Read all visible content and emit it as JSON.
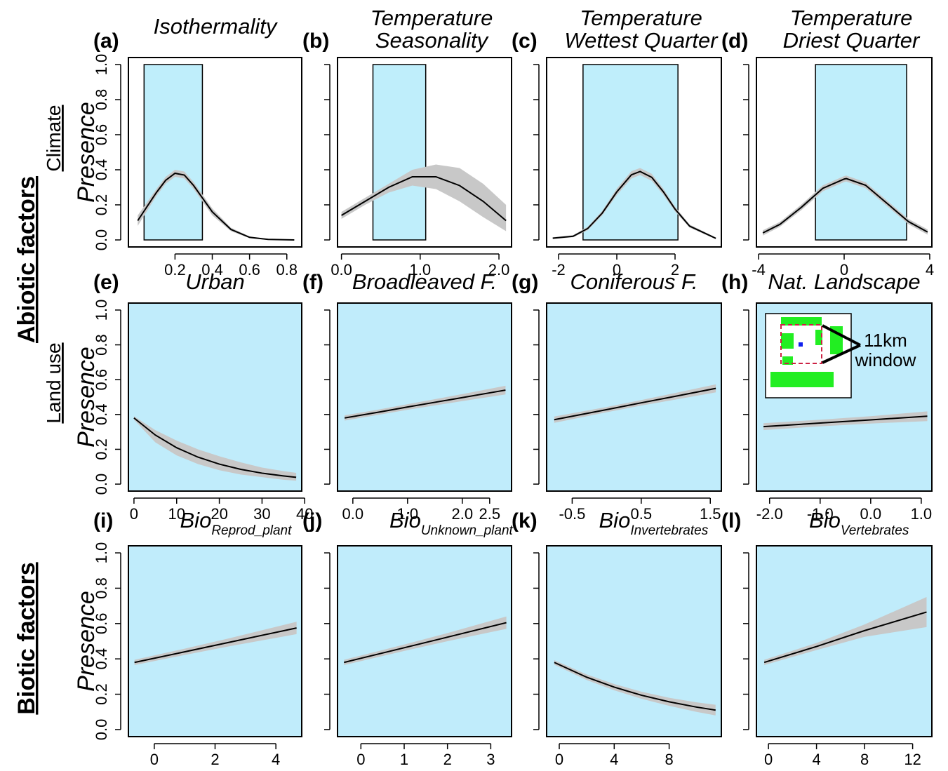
{
  "factor_labels": [
    "Abiotic factors",
    "Biotic factors"
  ],
  "chart_data": [
    {
      "type": "line",
      "panel": "(a)",
      "title": "Isothermality",
      "group_label": "Climate",
      "ylabel": "Presence",
      "ytick_labels": true,
      "xlim": [
        -0.05,
        0.88
      ],
      "xticks": [
        0.2,
        0.4,
        0.6,
        0.8
      ],
      "ylim": [
        -0.04,
        1.04
      ],
      "yticks": [
        {
          "value": 0,
          "label": "0.0"
        },
        0.2,
        0.4,
        0.6,
        0.8,
        {
          "value": 1,
          "label": "1.0"
        }
      ],
      "shade": [
        0.034,
        0.347
      ],
      "shade_color": "#bfeefb",
      "band_color": "#c8c8c8",
      "color": "#000000",
      "x": [
        0.0,
        0.1,
        0.15,
        0.2,
        0.25,
        0.3,
        0.4,
        0.5,
        0.6,
        0.7,
        0.84
      ],
      "values": [
        0.11,
        0.27,
        0.34,
        0.38,
        0.37,
        0.31,
        0.16,
        0.06,
        0.015,
        0.003,
        0.0
      ],
      "lower": [
        0.08,
        0.25,
        0.32,
        0.36,
        0.35,
        0.29,
        0.14,
        0.05,
        0.01,
        0.0,
        0.0
      ],
      "upper": [
        0.14,
        0.29,
        0.36,
        0.4,
        0.39,
        0.33,
        0.18,
        0.07,
        0.02,
        0.005,
        0.001
      ]
    },
    {
      "type": "line",
      "panel": "(b)",
      "title": [
        "Temperature",
        "Seasonality"
      ],
      "ytick_labels": false,
      "xlim": [
        -0.05,
        2.16
      ],
      "xticks": [
        {
          "value": 0,
          "label": "0.0"
        },
        {
          "value": 1,
          "label": "1.0"
        },
        {
          "value": 2,
          "label": "2.0"
        }
      ],
      "ylim": [
        -0.04,
        1.04
      ],
      "yticks": [
        0,
        0.2,
        0.4,
        0.6,
        0.8,
        1
      ],
      "shade": [
        0.4,
        1.07
      ],
      "shade_color": "#bfeefb",
      "band_color": "#c8c8c8",
      "color": "#000000",
      "x": [
        0,
        0.3,
        0.6,
        0.9,
        1.2,
        1.5,
        1.8,
        2.09
      ],
      "values": [
        0.14,
        0.22,
        0.3,
        0.36,
        0.36,
        0.31,
        0.22,
        0.11
      ],
      "lower": [
        0.12,
        0.2,
        0.27,
        0.31,
        0.29,
        0.22,
        0.13,
        0.05
      ],
      "upper": [
        0.16,
        0.24,
        0.32,
        0.4,
        0.43,
        0.41,
        0.32,
        0.2
      ]
    },
    {
      "type": "line",
      "panel": "(c)",
      "title": [
        "Temperature",
        "Wettest Quarter"
      ],
      "ytick_labels": false,
      "xlim": [
        -2.41,
        3.59
      ],
      "xticks": [
        -2,
        0,
        2
      ],
      "ylim": [
        -0.04,
        1.04
      ],
      "yticks": [
        0,
        0.2,
        0.4,
        0.6,
        0.8,
        1
      ],
      "shade": [
        -1.16,
        2.1
      ],
      "shade_color": "#bfeefb",
      "band_color": "#c8c8c8",
      "color": "#000000",
      "x": [
        -2.2,
        -1.5,
        -1,
        -0.5,
        0,
        0.5,
        0.8,
        1.2,
        1.6,
        2,
        2.5,
        3.4
      ],
      "values": [
        0.01,
        0.021,
        0.065,
        0.153,
        0.274,
        0.371,
        0.39,
        0.357,
        0.274,
        0.176,
        0.079,
        0.009
      ],
      "lower": [
        0.005,
        0.015,
        0.055,
        0.14,
        0.255,
        0.35,
        0.37,
        0.337,
        0.256,
        0.162,
        0.07,
        0.004
      ],
      "upper": [
        0.015,
        0.027,
        0.075,
        0.166,
        0.293,
        0.392,
        0.41,
        0.377,
        0.292,
        0.19,
        0.088,
        0.014
      ]
    },
    {
      "type": "line",
      "panel": "(d)",
      "title": [
        "Temperature",
        "Driest Quarter"
      ],
      "ytick_labels": false,
      "xlim": [
        -4.1,
        4.1
      ],
      "xticks": [
        -4,
        0,
        4
      ],
      "ylim": [
        -0.04,
        1.04
      ],
      "yticks": [
        0,
        0.2,
        0.4,
        0.6,
        0.8,
        1
      ],
      "shade": [
        -1.34,
        2.92
      ],
      "shade_color": "#bfeefb",
      "band_color": "#c8c8c8",
      "color": "#000000",
      "x": [
        -3.8,
        -3,
        -2,
        -1,
        0,
        0.1,
        1,
        2,
        3,
        3.9
      ],
      "values": [
        0.04,
        0.089,
        0.186,
        0.294,
        0.347,
        0.35,
        0.312,
        0.209,
        0.105,
        0.045
      ],
      "lower": [
        0.025,
        0.075,
        0.17,
        0.277,
        0.33,
        0.333,
        0.295,
        0.193,
        0.09,
        0.03
      ],
      "upper": [
        0.055,
        0.103,
        0.202,
        0.311,
        0.364,
        0.367,
        0.329,
        0.225,
        0.12,
        0.06
      ]
    },
    {
      "type": "line",
      "panel": "(e)",
      "title": "Urban",
      "group_label": "Land use",
      "ylabel": "Presence",
      "ytick_labels": true,
      "xlim": [
        -1.3,
        39.3
      ],
      "xticks": [
        0,
        10,
        20,
        30,
        40
      ],
      "ylim": [
        -0.04,
        1.04
      ],
      "yticks": [
        {
          "value": 0,
          "label": "0.0"
        },
        0.2,
        0.4,
        0.6,
        0.8,
        {
          "value": 1,
          "label": "1.0"
        }
      ],
      "panel_fill": "#c0ecfb",
      "band_color": "#c8c8c8",
      "color": "#000000",
      "x": [
        0,
        5,
        10,
        15,
        20,
        25,
        30,
        35,
        38
      ],
      "values": [
        0.38,
        0.282,
        0.209,
        0.155,
        0.115,
        0.085,
        0.063,
        0.047,
        0.039
      ],
      "lower": [
        0.37,
        0.24,
        0.165,
        0.115,
        0.08,
        0.055,
        0.04,
        0.025,
        0.02
      ],
      "upper": [
        0.39,
        0.31,
        0.25,
        0.2,
        0.16,
        0.125,
        0.095,
        0.075,
        0.065
      ]
    },
    {
      "type": "line",
      "panel": "(f)",
      "title": "Broadleaved F.",
      "ytick_labels": false,
      "xlim": [
        -0.28,
        2.9
      ],
      "xticks": [
        {
          "value": 0,
          "label": "0.0"
        },
        {
          "value": 1,
          "label": "1.0"
        },
        {
          "value": 2,
          "label": "2.0"
        },
        2.5
      ],
      "ylim": [
        -0.04,
        1.04
      ],
      "yticks": [
        0,
        0.2,
        0.4,
        0.6,
        0.8,
        1
      ],
      "panel_fill": "#c0ecfb",
      "band_color": "#c8c8c8",
      "color": "#000000",
      "x": [
        -0.15,
        0.5,
        1,
        1.5,
        2,
        2.79
      ],
      "values": [
        0.38,
        0.415,
        0.443,
        0.47,
        0.497,
        0.54
      ],
      "lower": [
        0.365,
        0.4,
        0.427,
        0.452,
        0.477,
        0.515
      ],
      "upper": [
        0.395,
        0.43,
        0.459,
        0.488,
        0.517,
        0.565
      ]
    },
    {
      "type": "line",
      "panel": "(g)",
      "title": "Coniferous F.",
      "ytick_labels": false,
      "xlim": [
        -0.87,
        1.66
      ],
      "xticks": [
        -0.5,
        0.5,
        1.5
      ],
      "ylim": [
        -0.04,
        1.04
      ],
      "yticks": [
        0,
        0.2,
        0.4,
        0.6,
        0.8,
        1
      ],
      "panel_fill": "#c0ecfb",
      "band_color": "#c8c8c8",
      "color": "#000000",
      "x": [
        -0.76,
        0,
        0.5,
        1,
        1.58
      ],
      "values": [
        0.37,
        0.428,
        0.467,
        0.505,
        0.55
      ],
      "lower": [
        0.352,
        0.413,
        0.451,
        0.486,
        0.527
      ],
      "upper": [
        0.388,
        0.443,
        0.483,
        0.524,
        0.573
      ]
    },
    {
      "type": "line",
      "panel": "(h)",
      "title": "Nat. Landscape",
      "annotation": [
        "11km",
        "window"
      ],
      "ytick_labels": false,
      "xlim": [
        -2.26,
        1.21
      ],
      "xticks": [
        {
          "value": -2,
          "label": "-2.0"
        },
        {
          "value": -1,
          "label": "-1.0"
        },
        {
          "value": 0,
          "label": "0.0"
        },
        {
          "value": 1,
          "label": "1.0"
        }
      ],
      "ylim": [
        -0.04,
        1.04
      ],
      "yticks": [
        0,
        0.2,
        0.4,
        0.6,
        0.8,
        1
      ],
      "panel_fill": "#c0ecfb",
      "band_color": "#c8c8c8",
      "color": "#000000",
      "x": [
        -2.12,
        -1,
        0,
        1.12
      ],
      "values": [
        0.33,
        0.351,
        0.369,
        0.39
      ],
      "lower": [
        0.31,
        0.332,
        0.348,
        0.362
      ],
      "upper": [
        0.35,
        0.37,
        0.39,
        0.418
      ]
    },
    {
      "type": "line",
      "panel": "(i)",
      "title": "Bio",
      "title_subscript": "Reprod_plant",
      "ylabel": "Presence",
      "ytick_labels": true,
      "xlim": [
        -0.85,
        4.85
      ],
      "xticks": [
        0,
        2,
        4
      ],
      "ylim": [
        -0.04,
        1.04
      ],
      "yticks": [
        {
          "value": 0,
          "label": "0.0"
        },
        0.2,
        0.4,
        0.6,
        0.8,
        {
          "value": 1,
          "label": "1.0"
        }
      ],
      "panel_fill": "#c0ecfb",
      "band_color": "#c8c8c8",
      "color": "#000000",
      "x": [
        -0.65,
        1,
        2.5,
        4.68
      ],
      "values": [
        0.38,
        0.44,
        0.495,
        0.575
      ],
      "lower": [
        0.365,
        0.422,
        0.472,
        0.54
      ],
      "upper": [
        0.395,
        0.458,
        0.518,
        0.61
      ]
    },
    {
      "type": "line",
      "panel": "(j)",
      "title": "Bio",
      "title_subscript": "Unknown_plant",
      "ytick_labels": false,
      "xlim": [
        -0.54,
        3.48
      ],
      "xticks": [
        0,
        1,
        2,
        3
      ],
      "ylim": [
        -0.04,
        1.04
      ],
      "yticks": [
        0,
        0.2,
        0.4,
        0.6,
        0.8,
        1
      ],
      "panel_fill": "#c0ecfb",
      "band_color": "#c8c8c8",
      "color": "#000000",
      "x": [
        -0.39,
        1,
        2,
        3.36
      ],
      "values": [
        0.38,
        0.463,
        0.523,
        0.605
      ],
      "lower": [
        0.365,
        0.445,
        0.5,
        0.57
      ],
      "upper": [
        0.395,
        0.481,
        0.546,
        0.64
      ]
    },
    {
      "type": "line",
      "panel": "(k)",
      "title": "Bio",
      "title_subscript": "Invertebrates",
      "ytick_labels": false,
      "xlim": [
        -0.92,
        11.8
      ],
      "xticks": [
        0,
        4,
        8
      ],
      "ylim": [
        -0.04,
        1.04
      ],
      "yticks": [
        0,
        0.2,
        0.4,
        0.6,
        0.8,
        1
      ],
      "panel_fill": "#c0ecfb",
      "band_color": "#c8c8c8",
      "color": "#000000",
      "x": [
        -0.36,
        2,
        4,
        6,
        8,
        10,
        11.38
      ],
      "values": [
        0.38,
        0.296,
        0.24,
        0.194,
        0.157,
        0.127,
        0.11
      ],
      "lower": [
        0.367,
        0.28,
        0.222,
        0.174,
        0.134,
        0.1,
        0.08
      ],
      "upper": [
        0.393,
        0.312,
        0.258,
        0.214,
        0.18,
        0.154,
        0.14
      ]
    },
    {
      "type": "line",
      "panel": "(l)",
      "title": "Bio",
      "title_subscript": "Vertebrates",
      "ytick_labels": false,
      "xlim": [
        -1.0,
        13.6
      ],
      "xticks": [
        0,
        4,
        8,
        12
      ],
      "ylim": [
        -0.04,
        1.04
      ],
      "yticks": [
        0,
        0.2,
        0.4,
        0.6,
        0.8,
        1
      ],
      "panel_fill": "#c0ecfb",
      "band_color": "#c8c8c8",
      "color": "#000000",
      "x": [
        -0.35,
        4,
        8,
        13.16
      ],
      "values": [
        0.38,
        0.47,
        0.56,
        0.665
      ],
      "lower": [
        0.365,
        0.45,
        0.525,
        0.58
      ],
      "upper": [
        0.395,
        0.49,
        0.595,
        0.75
      ]
    }
  ]
}
